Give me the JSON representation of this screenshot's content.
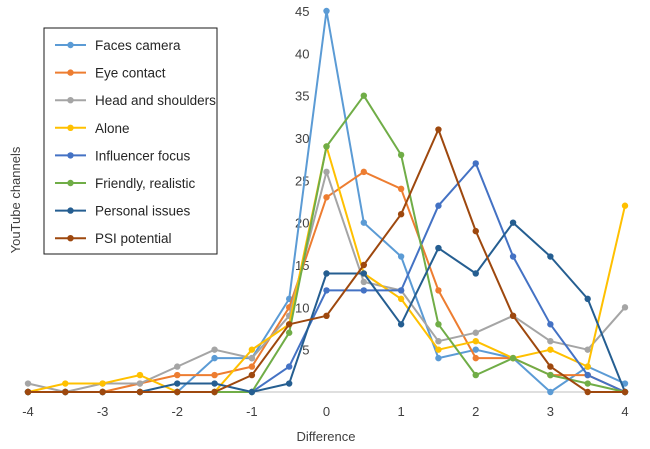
{
  "chart_data": {
    "type": "line",
    "title": "",
    "xlabel": "Difference",
    "ylabel": "YouTube channels",
    "xlim": [
      -4,
      4
    ],
    "ylim": [
      0,
      45
    ],
    "x_ticks": [
      "-4",
      "-3",
      "-2",
      "-1",
      "0",
      "1",
      "2",
      "3",
      "4"
    ],
    "y_ticks": [
      "5",
      "10",
      "15",
      "20",
      "25",
      "30",
      "35",
      "40",
      "45"
    ],
    "grid": false,
    "legend_position": "top-left",
    "x": [
      -4,
      -3.5,
      -3,
      -2.5,
      -2,
      -1.5,
      -1,
      -0.5,
      0,
      0.5,
      1,
      1.5,
      2,
      2.5,
      3,
      3.5,
      4
    ],
    "series": [
      {
        "name": "Faces camera",
        "color": "#5B9BD5",
        "values": [
          0,
          0,
          0,
          0,
          0,
          4,
          4,
          11,
          45,
          20,
          16,
          4,
          5,
          4,
          0,
          3,
          1
        ]
      },
      {
        "name": "Eye contact",
        "color": "#ED7D31",
        "values": [
          0,
          0,
          0,
          1,
          2,
          2,
          3,
          10,
          23,
          26,
          24,
          12,
          4,
          4,
          2,
          2,
          0
        ]
      },
      {
        "name": "Head and shoulders",
        "color": "#A5A5A5",
        "values": [
          1,
          0,
          1,
          1,
          3,
          5,
          4,
          9,
          26,
          13,
          12,
          6,
          7,
          9,
          6,
          5,
          10
        ]
      },
      {
        "name": "Alone",
        "color": "#FFC000",
        "values": [
          0,
          1,
          1,
          2,
          0,
          0,
          5,
          8,
          29,
          14,
          11,
          5,
          6,
          4,
          5,
          3,
          22
        ]
      },
      {
        "name": "Influencer focus",
        "color": "#4472C4",
        "values": [
          0,
          0,
          0,
          0,
          0,
          0,
          0,
          3,
          12,
          12,
          12,
          22,
          27,
          16,
          8,
          2,
          0
        ]
      },
      {
        "name": "Friendly, realistic",
        "color": "#70AD47",
        "values": [
          0,
          0,
          0,
          0,
          0,
          0,
          0,
          7,
          29,
          35,
          28,
          8,
          2,
          4,
          2,
          1,
          0
        ]
      },
      {
        "name": "Personal issues",
        "color": "#255E91",
        "values": [
          0,
          0,
          0,
          0,
          1,
          1,
          0,
          1,
          14,
          14,
          8,
          17,
          14,
          20,
          16,
          11,
          0
        ]
      },
      {
        "name": "PSI potential",
        "color": "#9E480E",
        "values": [
          0,
          0,
          0,
          0,
          0,
          0,
          2,
          8,
          9,
          15,
          21,
          31,
          19,
          9,
          3,
          0,
          0
        ]
      }
    ]
  }
}
